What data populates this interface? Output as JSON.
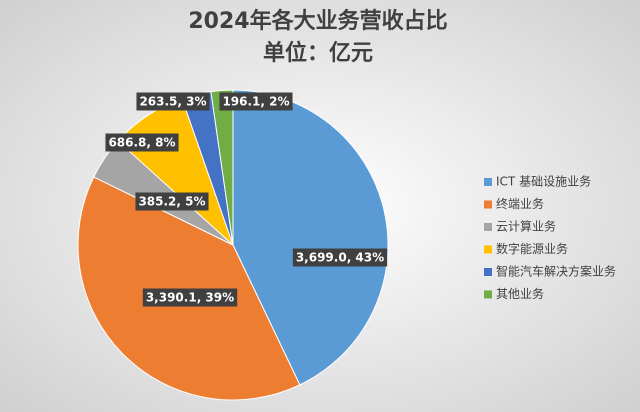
{
  "chart_data": {
    "type": "pie",
    "title": "2024年各大业务营收占比",
    "subtitle": "单位：亿元",
    "categories": [
      "ICT 基础设施业务",
      "终端业务",
      "云计算业务",
      "数字能源业务",
      "智能汽车解决方案业务",
      "其他业务"
    ],
    "values": [
      3699.0,
      3390.1,
      385.2,
      686.8,
      263.5,
      196.1
    ],
    "value_labels": [
      "3,699.0, 43%",
      "3,390.1, 39%",
      "385.2, 5%",
      "686.8, 8%",
      "263.5, 3%",
      "196.1, 2%"
    ],
    "colors": [
      "#5b9bd5",
      "#ed7d31",
      "#a5a5a5",
      "#ffc000",
      "#4472c4",
      "#70ad47"
    ],
    "legend": "right"
  }
}
